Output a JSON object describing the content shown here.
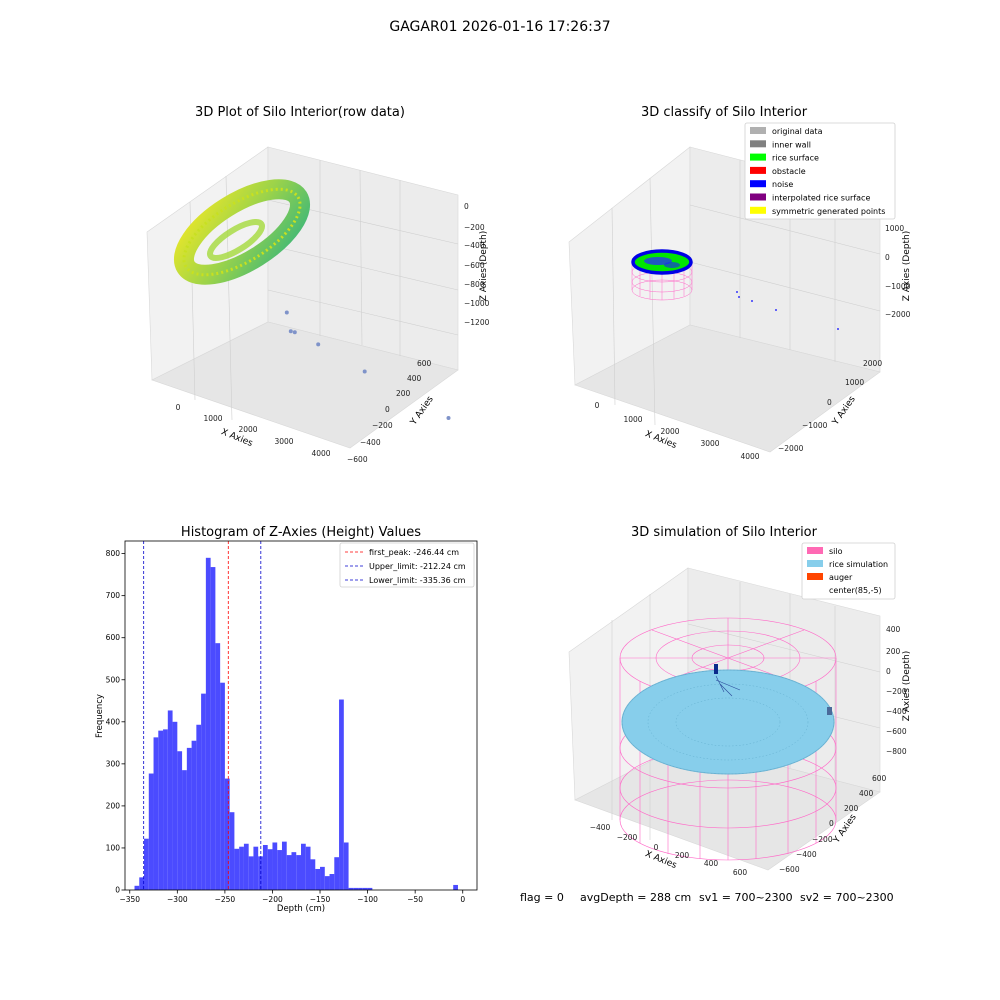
{
  "figure": {
    "suptitle": "GAGAR01 2026-01-16 17:26:37",
    "footer": {
      "flag": "flag = 0",
      "avg": "avgDepth = 288 cm",
      "sv1": "sv1 = 700~2300",
      "sv2": "sv2 = 700~2300"
    }
  },
  "chart_data": [
    {
      "type": "scatter",
      "panel": "top-left",
      "title": "3D Plot of Silo Interior(row data)",
      "xlabel": "X Axies",
      "ylabel": "Y Axies",
      "zlabel": "Z Axies (Depth)",
      "xticks": [
        "0",
        "1000",
        "2000",
        "3000",
        "4000"
      ],
      "yticks": [
        "600",
        "400",
        "200",
        "0",
        "−200",
        "−400",
        "−600"
      ],
      "zticks": [
        "0",
        "−200",
        "−400",
        "−600",
        "−800",
        "−1000",
        "−1200"
      ],
      "colormap": "viridis",
      "outlier_points": [
        {
          "x": 1900,
          "y": 80,
          "z": -700
        },
        {
          "x": 1950,
          "y": 60,
          "z": -900
        },
        {
          "x": 2000,
          "y": 40,
          "z": -890
        },
        {
          "x": 2300,
          "y": -60,
          "z": -920
        },
        {
          "x": 2900,
          "y": -250,
          "z": -1020
        },
        {
          "x": 4000,
          "y": -550,
          "z": -1200
        }
      ]
    },
    {
      "type": "scatter",
      "panel": "top-right",
      "title": "3D classify of Silo Interior",
      "xlabel": "X Axies",
      "ylabel": "Y Axies",
      "zlabel": "Z Axies (Depth)",
      "xticks": [
        "0",
        "1000",
        "2000",
        "3000",
        "4000"
      ],
      "yticks": [
        "2000",
        "1000",
        "0",
        "−1000",
        "−2000"
      ],
      "zticks": [
        "1000",
        "0",
        "−1000",
        "−2000"
      ],
      "legend_position": "upper right",
      "legend": [
        {
          "label": "original data",
          "color": "#b0b0b0"
        },
        {
          "label": "inner wall",
          "color": "#808080"
        },
        {
          "label": "rice surface",
          "color": "#00ff00"
        },
        {
          "label": "obstacle",
          "color": "#ff0000"
        },
        {
          "label": "noise",
          "color": "#0000ff"
        },
        {
          "label": "interpolated rice surface",
          "color": "#800080"
        },
        {
          "label": "symmetric generated points",
          "color": "#ffff00"
        }
      ]
    },
    {
      "type": "bar",
      "panel": "bottom-left",
      "title": "Histogram of Z-Axies (Height) Values",
      "xlabel": "Depth (cm)",
      "ylabel": "Frequency",
      "xlim": [
        -355,
        15
      ],
      "ylim": [
        0,
        830
      ],
      "xticks": [
        -350,
        -300,
        -250,
        -200,
        -150,
        -100,
        -50,
        0
      ],
      "yticks": [
        0,
        100,
        200,
        300,
        400,
        500,
        600,
        700,
        800
      ],
      "bar_color": "#4b4bff",
      "bin_width": 5,
      "bins": [
        {
          "x": -340,
          "v": 10
        },
        {
          "x": -335,
          "v": 30
        },
        {
          "x": -330,
          "v": 122
        },
        {
          "x": -325,
          "v": 277
        },
        {
          "x": -320,
          "v": 363
        },
        {
          "x": -315,
          "v": 379
        },
        {
          "x": -310,
          "v": 382
        },
        {
          "x": -305,
          "v": 427
        },
        {
          "x": -300,
          "v": 400
        },
        {
          "x": -295,
          "v": 330
        },
        {
          "x": -290,
          "v": 285
        },
        {
          "x": -285,
          "v": 338
        },
        {
          "x": -280,
          "v": 355
        },
        {
          "x": -275,
          "v": 393
        },
        {
          "x": -270,
          "v": 467
        },
        {
          "x": -265,
          "v": 790
        },
        {
          "x": -260,
          "v": 768
        },
        {
          "x": -255,
          "v": 587
        },
        {
          "x": -250,
          "v": 493
        },
        {
          "x": -245,
          "v": 265
        },
        {
          "x": -240,
          "v": 185
        },
        {
          "x": -235,
          "v": 98
        },
        {
          "x": -230,
          "v": 103
        },
        {
          "x": -225,
          "v": 110
        },
        {
          "x": -220,
          "v": 80
        },
        {
          "x": -215,
          "v": 103
        },
        {
          "x": -210,
          "v": 80
        },
        {
          "x": -205,
          "v": 107
        },
        {
          "x": -200,
          "v": 97
        },
        {
          "x": -195,
          "v": 113
        },
        {
          "x": -190,
          "v": 95
        },
        {
          "x": -185,
          "v": 115
        },
        {
          "x": -180,
          "v": 83
        },
        {
          "x": -175,
          "v": 90
        },
        {
          "x": -170,
          "v": 83
        },
        {
          "x": -165,
          "v": 110
        },
        {
          "x": -160,
          "v": 103
        },
        {
          "x": -155,
          "v": 73
        },
        {
          "x": -150,
          "v": 50
        },
        {
          "x": -145,
          "v": 55
        },
        {
          "x": -140,
          "v": 33
        },
        {
          "x": -135,
          "v": 38
        },
        {
          "x": -130,
          "v": 78
        },
        {
          "x": -125,
          "v": 453
        },
        {
          "x": -120,
          "v": 113
        },
        {
          "x": -115,
          "v": 5
        },
        {
          "x": -110,
          "v": 5
        },
        {
          "x": -105,
          "v": 5
        },
        {
          "x": -100,
          "v": 5
        },
        {
          "x": -95,
          "v": 5
        },
        {
          "x": -5,
          "v": 12
        }
      ],
      "vlines": [
        {
          "x": -246.44,
          "color": "#ff0000",
          "label": "first_peak: -246.44 cm"
        },
        {
          "x": -212.24,
          "color": "#0000cc",
          "label": "Upper_limit: -212.24 cm"
        },
        {
          "x": -335.36,
          "color": "#0000cc",
          "label": "Lower_limit: -335.36 cm"
        }
      ],
      "legend_position": "upper right"
    },
    {
      "type": "scatter",
      "panel": "bottom-right",
      "title": "3D simulation of Silo Interior",
      "xlabel": "X Axies",
      "ylabel": "Y Axies",
      "zlabel": "Z Axies (Depth)",
      "xticks": [
        "−400",
        "−200",
        "0",
        "200",
        "400",
        "600"
      ],
      "yticks": [
        "600",
        "400",
        "200",
        "0",
        "−200",
        "−400",
        "−600"
      ],
      "zticks": [
        "400",
        "200",
        "0",
        "−200",
        "−400",
        "−600",
        "−800"
      ],
      "legend_position": "upper right",
      "legend": [
        {
          "label": "silo",
          "color": "#ff69b4"
        },
        {
          "label": "rice simulation",
          "color": "#87ceeb"
        },
        {
          "label": "auger",
          "color": "#ff4500"
        },
        {
          "label": "center(85,-5)",
          "color": "#ffffff"
        }
      ]
    }
  ]
}
